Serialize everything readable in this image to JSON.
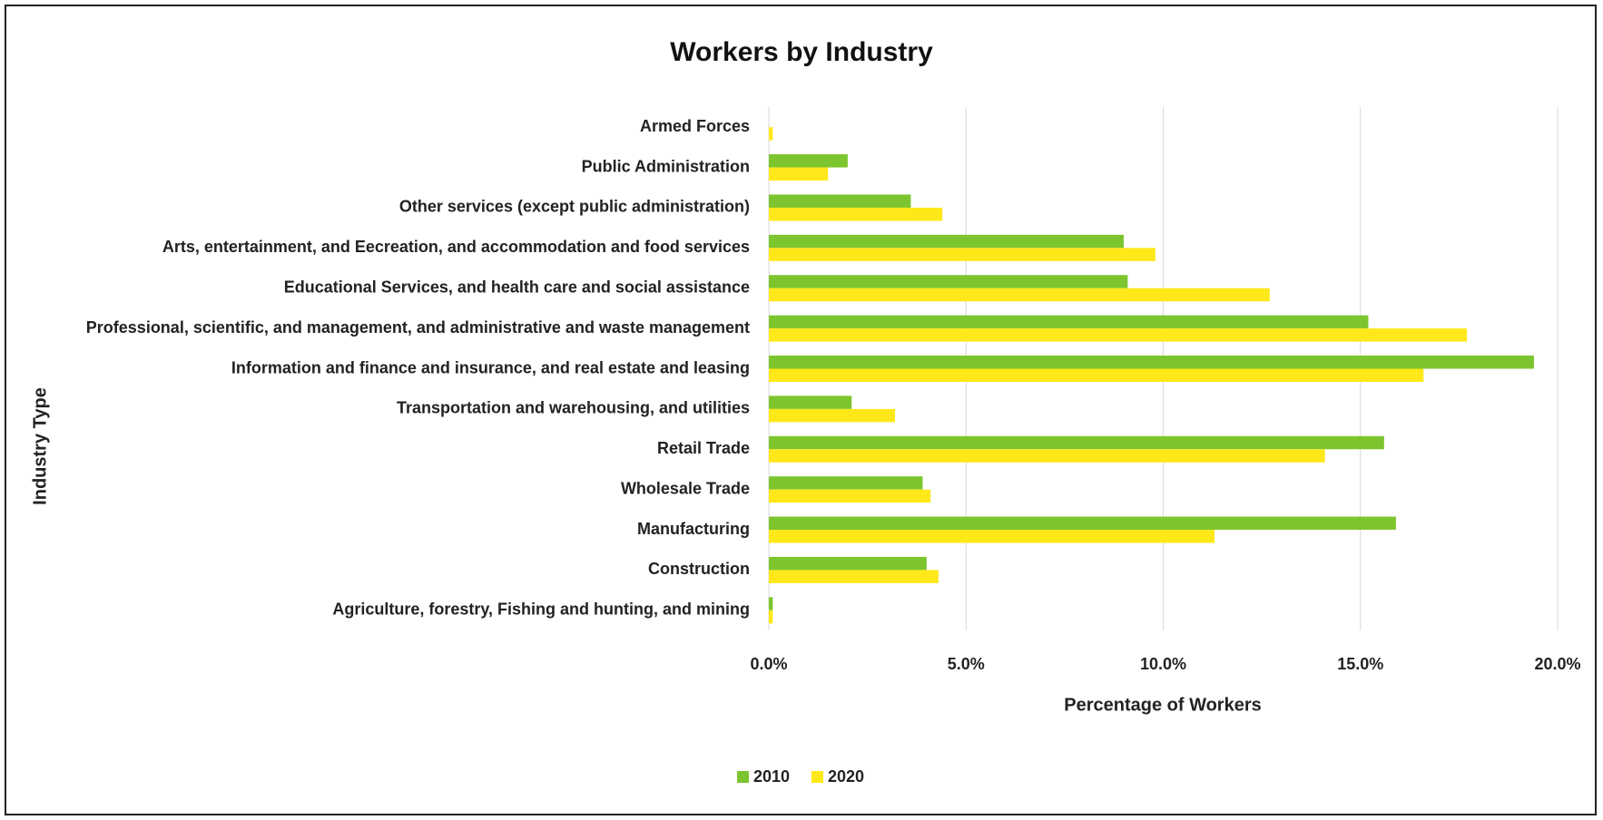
{
  "chart_data": {
    "type": "bar",
    "orientation": "horizontal",
    "title": "Workers by Industry",
    "x_label": "Percentage of Workers",
    "y_label": "Industry Type",
    "categories": [
      "Agriculture, forestry, Fishing and hunting, and mining",
      "Construction",
      "Manufacturing",
      "Wholesale Trade",
      "Retail Trade",
      "Transportation and warehousing, and utilities",
      "Information and finance and insurance, and real estate and leasing",
      "Professional, scientific, and management, and administrative and waste management",
      "Educational Services, and health care and social assistance",
      "Arts, entertainment, and Eecreation, and accommodation and food services",
      "Other services (except public administration)",
      "Public Administration",
      "Armed Forces"
    ],
    "series": [
      {
        "name": "2010",
        "color": "#7dc52e",
        "values": [
          0.1,
          4.0,
          15.9,
          3.9,
          15.6,
          2.1,
          19.4,
          15.2,
          9.1,
          9.0,
          3.6,
          2.0,
          0
        ]
      },
      {
        "name": "2020",
        "color": "#ffe81a",
        "values": [
          0.1,
          4.3,
          11.3,
          4.1,
          14.1,
          3.2,
          16.6,
          17.7,
          12.7,
          9.8,
          4.4,
          1.5,
          0.1
        ]
      }
    ],
    "xlim": [
      0,
      20
    ],
    "xticks": [
      {
        "value": 0,
        "label": "0.0%"
      },
      {
        "value": 5,
        "label": "5.0%"
      },
      {
        "value": 10,
        "label": "10.0%"
      },
      {
        "value": 15,
        "label": "15.0%"
      },
      {
        "value": 20,
        "label": "20.0%"
      }
    ],
    "grid": true,
    "legend": "bottom"
  }
}
